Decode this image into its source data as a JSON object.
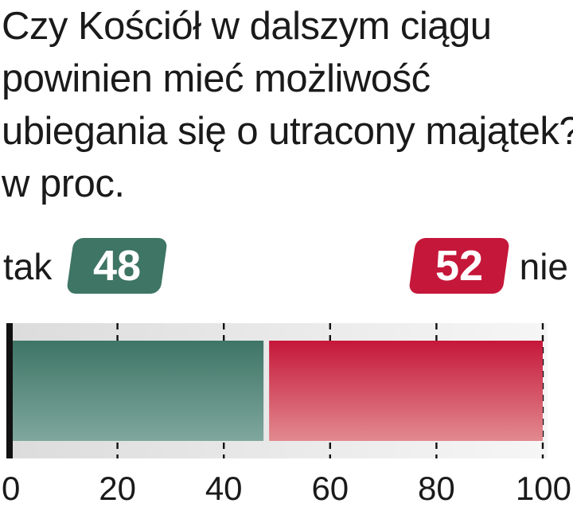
{
  "chart_data": {
    "type": "bar",
    "orientation": "horizontal-stacked",
    "title_lines": [
      "Czy Kościół w dalszym ciągu",
      "powinien mieć możliwość",
      "ubiegania się o utracony majątek?",
      "w proc."
    ],
    "series": [
      {
        "name": "tak",
        "value": 48,
        "color": "#3e7565",
        "color_light": "#7fa79d"
      },
      {
        "name": "nie",
        "value": 52,
        "color": "#c5173a",
        "color_light": "#e28a8f"
      }
    ],
    "xlim": [
      0,
      100
    ],
    "ticks": [
      "0",
      "20",
      "40",
      "60",
      "80",
      "100"
    ],
    "tick_values": [
      0,
      20,
      40,
      60,
      80,
      100
    ],
    "grid": "dashed vertical lines at 20, 40, 60, 80, 100"
  },
  "labels": {
    "left_answer": "tak",
    "left_value": "48",
    "right_answer": "nie",
    "right_value": "52"
  }
}
